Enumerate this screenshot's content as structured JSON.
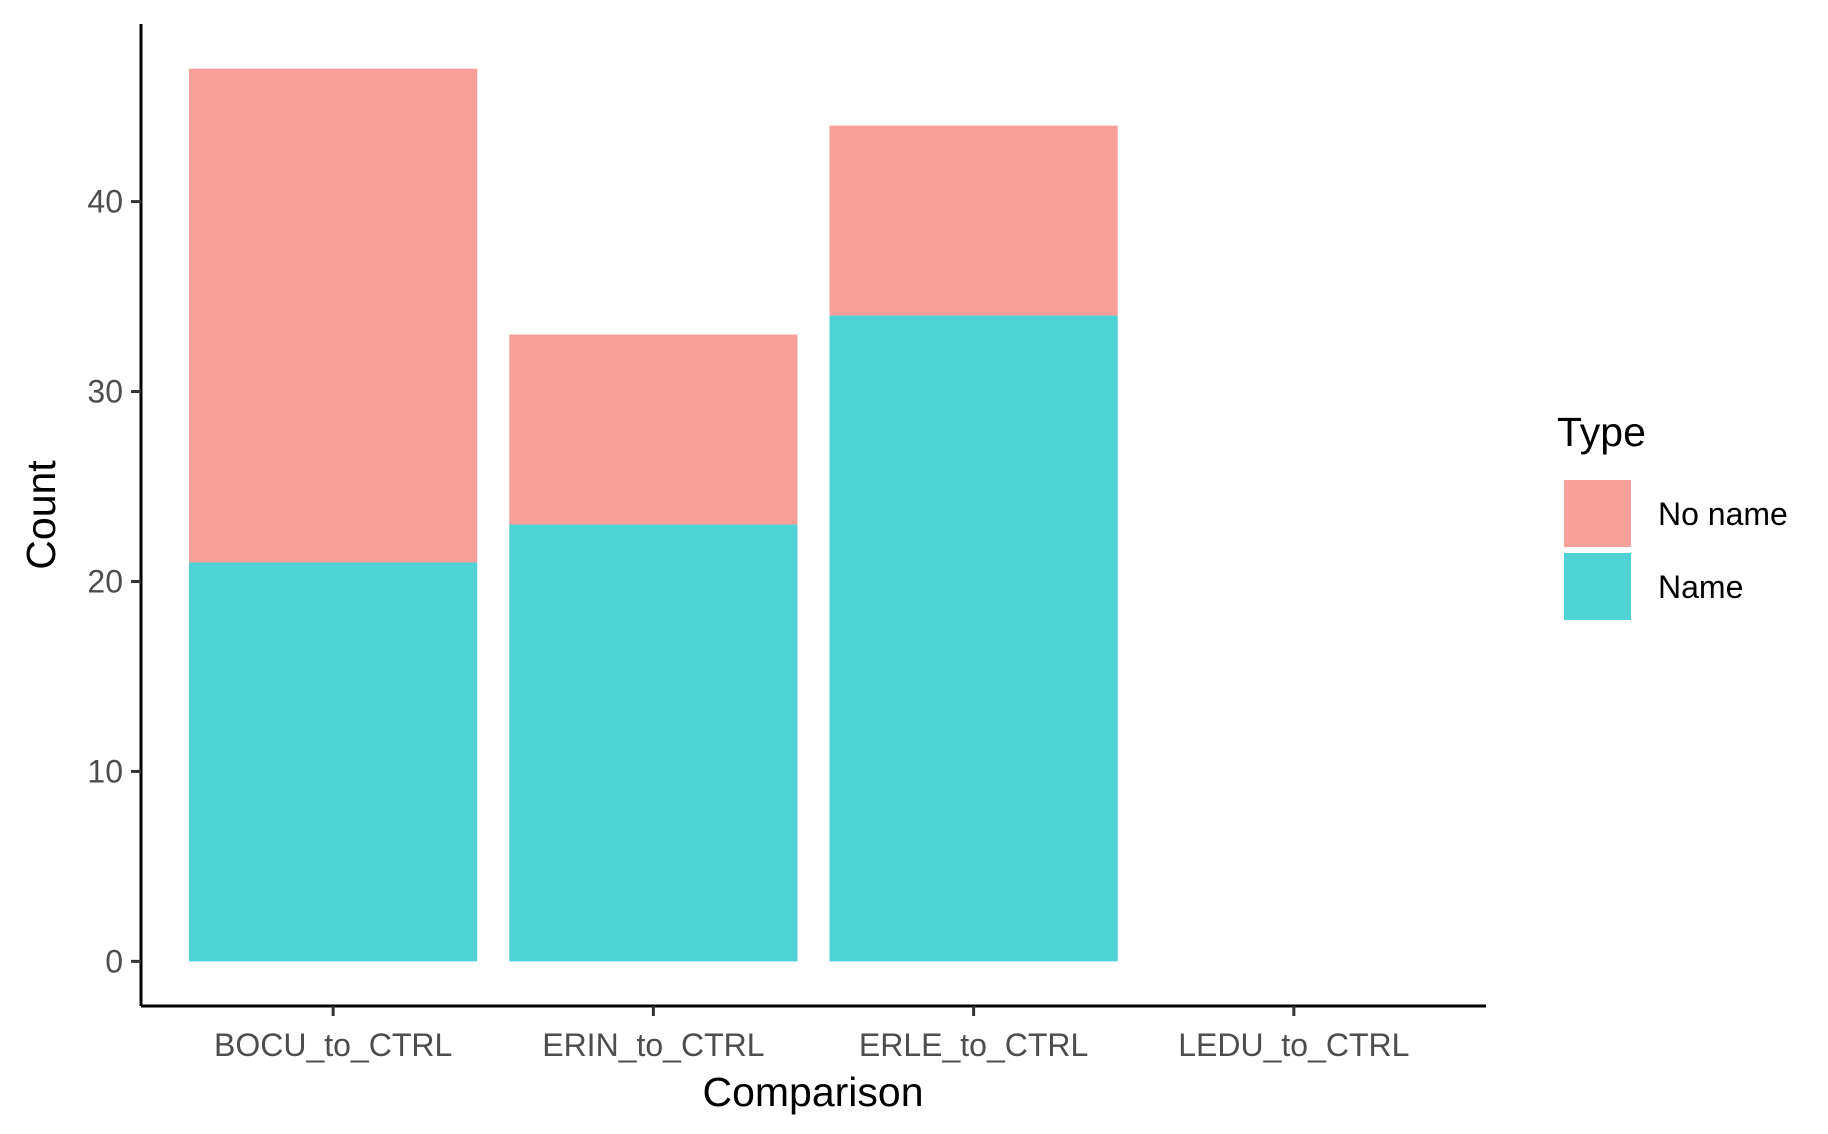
{
  "chart_data": {
    "type": "bar",
    "stacked": true,
    "categories": [
      "BOCU_to_CTRL",
      "ERIN_to_CTRL",
      "ERLE_to_CTRL",
      "LEDU_to_CTRL"
    ],
    "series": [
      {
        "name": "Name",
        "values": [
          21,
          23,
          34,
          0
        ],
        "color": "#4dd2d5"
      },
      {
        "name": "No name",
        "values": [
          26,
          10,
          10,
          0
        ],
        "color": "#f99f99"
      }
    ],
    "xlabel": "Comparison",
    "ylabel": "Count",
    "ylim": [
      -2.35,
      49.35
    ],
    "yticks": [
      0,
      10,
      20,
      30,
      40
    ],
    "grid": false,
    "legend": {
      "title": "Type",
      "position": "right",
      "order": [
        "No name",
        "Name"
      ]
    }
  }
}
